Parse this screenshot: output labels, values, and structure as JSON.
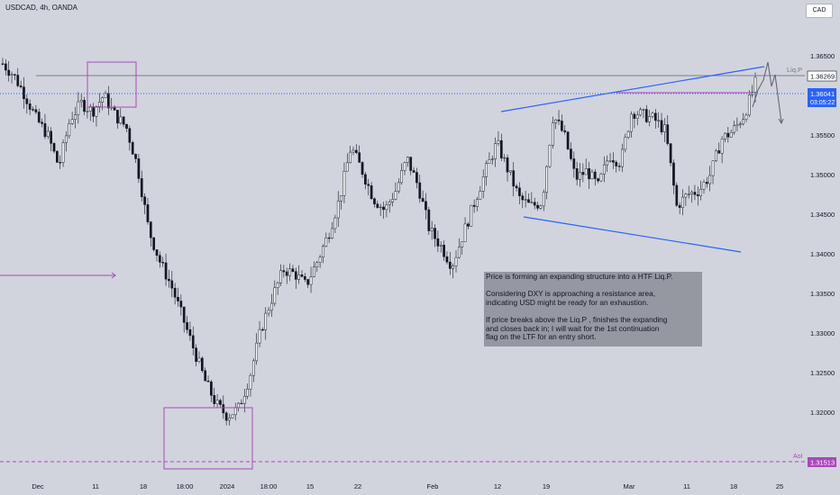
{
  "header": {
    "symbol_title": "USDCAD, 4h, OANDA",
    "currency_button": "CAD"
  },
  "price_tags": {
    "liq_level": "1.36269",
    "last_price": "1.36041",
    "countdown": "03:05:22",
    "aoi_level": "1.31513"
  },
  "drawing_labels": {
    "liq": "Liq.P",
    "aoi": "AoI"
  },
  "note": {
    "lines": [
      "Price is forming an expanding structure into a HTF Liq.P.",
      "",
      "Considering DXY is approaching a resistance area,",
      "indicating USD might be ready for an exhaustion.",
      "",
      "If price breaks above the Liq.P , finishes the expanding",
      "and closes back in; I will wait for the 1st continuation",
      "flag on the LTF for an entry short."
    ]
  },
  "colors": {
    "background": "#d1d4dc",
    "candle": "#131722",
    "trendline": "#2962ff",
    "box": "#ab47bc",
    "liq_tag": "#ffffff",
    "price_tag": "#2962ff",
    "aoi_tag": "#ab47bc"
  },
  "chart_data": {
    "type": "candlestick",
    "y_axis_ticks": [
      "1.36500",
      "1.36000",
      "1.35500",
      "1.35000",
      "1.34500",
      "1.34000",
      "1.33500",
      "1.33000",
      "1.32500",
      "1.32000"
    ],
    "x_axis_ticks": [
      "Dec",
      "11",
      "18",
      "18:00",
      "2024",
      "18:00",
      "15",
      "22",
      "Feb",
      "12",
      "19",
      "Mar",
      "11",
      "18",
      "25"
    ],
    "close_path": [
      1.364,
      1.3625,
      1.36,
      1.357,
      1.355,
      1.351,
      1.357,
      1.359,
      1.358,
      1.36,
      1.3575,
      1.356,
      1.351,
      1.343,
      1.339,
      1.336,
      1.332,
      1.328,
      1.324,
      1.321,
      1.3195,
      1.3205,
      1.3245,
      1.3305,
      1.3345,
      1.338,
      1.3375,
      1.336,
      1.339,
      1.3425,
      1.347,
      1.3535,
      1.3505,
      1.347,
      1.3455,
      1.348,
      1.352,
      1.3485,
      1.343,
      1.341,
      1.3385,
      1.3425,
      1.3465,
      1.3505,
      1.354,
      1.3505,
      1.347,
      1.346,
      1.3465,
      1.3575,
      1.355,
      1.3495,
      1.3505,
      1.3485,
      1.3525,
      1.3515,
      1.358,
      1.3575,
      1.357,
      1.3555,
      1.346,
      1.3475,
      1.348,
      1.35,
      1.3545,
      1.3555,
      1.3575,
      1.3615
    ],
    "liq_level": 1.36269,
    "current_price": 1.36041,
    "aoi_level": 1.31513
  }
}
